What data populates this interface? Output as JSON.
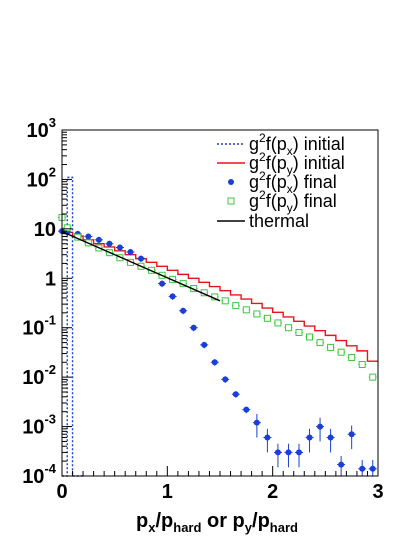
{
  "chart_data": {
    "type": "line",
    "title": "",
    "xlabel": {
      "p1": "p",
      "s1": "x",
      "p2": "/p",
      "s2": "hard",
      "p3": " or p",
      "s3": "y",
      "p4": "/p",
      "s4": "hard"
    },
    "ylabel": "",
    "xlim": [
      0,
      3
    ],
    "ylim": [
      0.0001,
      1000
    ],
    "yscale": "log",
    "x_ticks": [
      "0",
      "1",
      "2",
      "3"
    ],
    "y_ticks": [
      {
        "base": "10",
        "exp": "3"
      },
      {
        "base": "10",
        "exp": "2"
      },
      {
        "base": "10",
        "exp": ""
      },
      {
        "base": "1",
        "exp": ""
      },
      {
        "base": "10",
        "exp": "-1"
      },
      {
        "base": "10",
        "exp": "-2"
      },
      {
        "base": "10",
        "exp": "-3"
      },
      {
        "base": "10",
        "exp": "-4"
      }
    ],
    "legend_position": "top-right",
    "series": [
      {
        "legend": {
          "a": "g",
          "b": "2",
          "c": "f(p",
          "d": "x",
          "e": ") initial"
        },
        "kind": "step",
        "color": "#1a3fd6",
        "dash": true,
        "x": [
          0.0,
          0.05,
          0.1
        ],
        "y": [
          0.0001,
          110,
          0.0001
        ]
      },
      {
        "legend": {
          "a": "g",
          "b": "2",
          "c": "f(p",
          "d": "y",
          "e": ") initial"
        },
        "kind": "step",
        "color": "#e8141b",
        "dash": false,
        "x": [
          0.0,
          0.1,
          0.2,
          0.3,
          0.4,
          0.5,
          0.6,
          0.7,
          0.8,
          0.9,
          1.0,
          1.1,
          1.2,
          1.3,
          1.4,
          1.5,
          1.6,
          1.7,
          1.8,
          1.9,
          2.0,
          2.1,
          2.2,
          2.3,
          2.4,
          2.5,
          2.6,
          2.7,
          2.8,
          2.9,
          3.0
        ],
        "y": [
          8.5,
          7.2,
          6.0,
          5.0,
          4.3,
          3.6,
          3.0,
          2.5,
          2.1,
          1.75,
          1.45,
          1.2,
          1.0,
          0.83,
          0.68,
          0.56,
          0.46,
          0.38,
          0.31,
          0.25,
          0.205,
          0.165,
          0.135,
          0.108,
          0.087,
          0.07,
          0.055,
          0.043,
          0.034,
          0.021,
          0.021
        ]
      },
      {
        "legend": {
          "a": "g",
          "b": "2",
          "c": "f(p",
          "d": "x",
          "e": ") final"
        },
        "kind": "points",
        "color": "#1a3fd6",
        "marker": "dot",
        "x": [
          0.0,
          0.05,
          0.15,
          0.25,
          0.35,
          0.45,
          0.55,
          0.65,
          0.75,
          0.85,
          0.95,
          1.05,
          1.15,
          1.25,
          1.35,
          1.45,
          1.55,
          1.65,
          1.75,
          1.85,
          1.95,
          2.05,
          2.15,
          2.25,
          2.35,
          2.45,
          2.55,
          2.65,
          2.75,
          2.85,
          2.95
        ],
        "y": [
          9.0,
          8.6,
          7.9,
          7.0,
          6.0,
          5.0,
          4.2,
          3.4,
          2.5,
          1.45,
          0.78,
          0.43,
          0.22,
          0.1,
          0.045,
          0.02,
          0.009,
          0.0045,
          0.0022,
          0.0012,
          0.0006,
          0.0003,
          0.0003,
          0.0003,
          0.0006,
          0.001,
          0.0006,
          0.00017,
          0.0007,
          0.00014,
          0.00014
        ]
      },
      {
        "legend": {
          "a": "g",
          "b": "2",
          "c": "f(p",
          "d": "y",
          "e": ") final"
        },
        "kind": "points",
        "color": "#3cc83c",
        "marker": "open-square",
        "x": [
          0.0,
          0.05,
          0.15,
          0.25,
          0.35,
          0.45,
          0.55,
          0.65,
          0.75,
          0.85,
          0.95,
          1.05,
          1.15,
          1.25,
          1.35,
          1.45,
          1.55,
          1.65,
          1.75,
          1.85,
          1.95,
          2.05,
          2.15,
          2.25,
          2.35,
          2.45,
          2.55,
          2.65,
          2.75,
          2.85,
          2.95
        ],
        "y": [
          17.0,
          10.5,
          6.8,
          5.2,
          4.1,
          3.3,
          2.6,
          2.1,
          1.75,
          1.45,
          1.15,
          0.95,
          0.78,
          0.62,
          0.51,
          0.42,
          0.35,
          0.28,
          0.23,
          0.19,
          0.155,
          0.125,
          0.1,
          0.08,
          0.065,
          0.05,
          0.04,
          0.032,
          0.025,
          0.018,
          0.01
        ]
      },
      {
        "legend": {
          "a": "thermal",
          "b": "",
          "c": "",
          "d": "",
          "e": ""
        },
        "kind": "line",
        "color": "#000000",
        "dash": false,
        "x": [
          0.0,
          1.5
        ],
        "y": [
          8.8,
          0.35
        ]
      }
    ]
  }
}
